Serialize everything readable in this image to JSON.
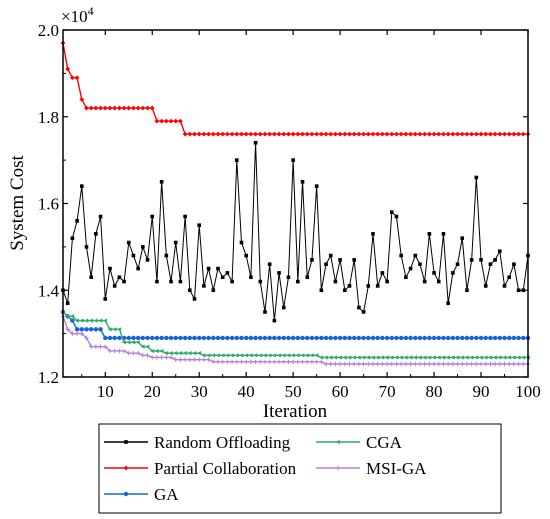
{
  "chart_data": {
    "type": "line",
    "xlabel": "Iteration",
    "ylabel": "System Cost",
    "y_multiplier_label": "×10",
    "y_multiplier_exp": "4",
    "xlim": [
      1,
      100
    ],
    "ylim": [
      1.2,
      2.0
    ],
    "xticks": [
      10,
      20,
      30,
      40,
      50,
      60,
      70,
      80,
      90,
      100
    ],
    "xtick_labels": [
      "10",
      "20",
      "30",
      "40",
      "50",
      "60",
      "70",
      "80",
      "90",
      "100"
    ],
    "yticks": [
      1.2,
      1.4,
      1.6,
      1.8,
      2.0
    ],
    "ytick_labels": [
      "1.2",
      "1.4",
      "1.6",
      "1.8",
      "2.0"
    ],
    "legend_position": "below",
    "series": [
      {
        "name": "Random Offloading",
        "color": "#000000",
        "marker": "square",
        "x": [
          1,
          2,
          3,
          4,
          5,
          6,
          7,
          8,
          9,
          10,
          11,
          12,
          13,
          14,
          15,
          16,
          17,
          18,
          19,
          20,
          21,
          22,
          23,
          24,
          25,
          26,
          27,
          28,
          29,
          30,
          31,
          32,
          33,
          34,
          35,
          36,
          37,
          38,
          39,
          40,
          41,
          42,
          43,
          44,
          45,
          46,
          47,
          48,
          49,
          50,
          51,
          52,
          53,
          54,
          55,
          56,
          57,
          58,
          59,
          60,
          61,
          62,
          63,
          64,
          65,
          66,
          67,
          68,
          69,
          70,
          71,
          72,
          73,
          74,
          75,
          76,
          77,
          78,
          79,
          80,
          81,
          82,
          83,
          84,
          85,
          86,
          87,
          88,
          89,
          90,
          91,
          92,
          93,
          94,
          95,
          96,
          97,
          98,
          99,
          100
        ],
        "values": [
          1.4,
          1.37,
          1.52,
          1.56,
          1.64,
          1.5,
          1.43,
          1.53,
          1.57,
          1.38,
          1.45,
          1.41,
          1.43,
          1.42,
          1.51,
          1.48,
          1.45,
          1.5,
          1.47,
          1.57,
          1.42,
          1.65,
          1.48,
          1.42,
          1.51,
          1.42,
          1.57,
          1.4,
          1.38,
          1.55,
          1.41,
          1.45,
          1.4,
          1.45,
          1.43,
          1.44,
          1.42,
          1.7,
          1.51,
          1.48,
          1.43,
          1.74,
          1.42,
          1.35,
          1.46,
          1.33,
          1.44,
          1.36,
          1.43,
          1.7,
          1.42,
          1.65,
          1.43,
          1.47,
          1.64,
          1.4,
          1.46,
          1.48,
          1.42,
          1.47,
          1.4,
          1.41,
          1.47,
          1.36,
          1.35,
          1.41,
          1.53,
          1.41,
          1.44,
          1.42,
          1.58,
          1.57,
          1.48,
          1.43,
          1.45,
          1.48,
          1.46,
          1.42,
          1.53,
          1.44,
          1.42,
          1.53,
          1.37,
          1.44,
          1.46,
          1.52,
          1.4,
          1.47,
          1.66,
          1.47,
          1.41,
          1.46,
          1.47,
          1.49,
          1.41,
          1.43,
          1.46,
          1.4,
          1.4,
          1.48
        ]
      },
      {
        "name": "Partial Collaboration",
        "color": "#ff0000",
        "marker": "diamond",
        "x": [
          1,
          2,
          3,
          4,
          5,
          6,
          7,
          8,
          9,
          10,
          11,
          12,
          13,
          14,
          15,
          16,
          17,
          18,
          19,
          20,
          21,
          22,
          23,
          24,
          25,
          26,
          27,
          28,
          29,
          30,
          31,
          32,
          33,
          34,
          35,
          36,
          37,
          38,
          39,
          40,
          41,
          42,
          43,
          44,
          45,
          46,
          47,
          48,
          49,
          50,
          51,
          52,
          53,
          54,
          55,
          56,
          57,
          58,
          59,
          60,
          61,
          62,
          63,
          64,
          65,
          66,
          67,
          68,
          69,
          70,
          71,
          72,
          73,
          74,
          75,
          76,
          77,
          78,
          79,
          80,
          81,
          82,
          83,
          84,
          85,
          86,
          87,
          88,
          89,
          90,
          91,
          92,
          93,
          94,
          95,
          96,
          97,
          98,
          99,
          100
        ],
        "values": [
          1.97,
          1.91,
          1.89,
          1.89,
          1.84,
          1.82,
          1.82,
          1.82,
          1.82,
          1.82,
          1.82,
          1.82,
          1.82,
          1.82,
          1.82,
          1.82,
          1.82,
          1.82,
          1.82,
          1.82,
          1.79,
          1.79,
          1.79,
          1.79,
          1.79,
          1.79,
          1.76,
          1.76,
          1.76,
          1.76,
          1.76,
          1.76,
          1.76,
          1.76,
          1.76,
          1.76,
          1.76,
          1.76,
          1.76,
          1.76,
          1.76,
          1.76,
          1.76,
          1.76,
          1.76,
          1.76,
          1.76,
          1.76,
          1.76,
          1.76,
          1.76,
          1.76,
          1.76,
          1.76,
          1.76,
          1.76,
          1.76,
          1.76,
          1.76,
          1.76,
          1.76,
          1.76,
          1.76,
          1.76,
          1.76,
          1.76,
          1.76,
          1.76,
          1.76,
          1.76,
          1.76,
          1.76,
          1.76,
          1.76,
          1.76,
          1.76,
          1.76,
          1.76,
          1.76,
          1.76,
          1.76,
          1.76,
          1.76,
          1.76,
          1.76,
          1.76,
          1.76,
          1.76,
          1.76,
          1.76,
          1.76,
          1.76,
          1.76,
          1.76,
          1.76,
          1.76,
          1.76,
          1.76,
          1.76,
          1.76
        ]
      },
      {
        "name": "GA",
        "color": "#1565d8",
        "marker": "circle",
        "x": [
          1,
          2,
          3,
          4,
          5,
          6,
          7,
          8,
          9,
          10,
          11,
          12,
          13,
          14,
          15,
          16,
          17,
          18,
          19,
          20,
          21,
          22,
          23,
          24,
          25,
          26,
          27,
          28,
          29,
          30,
          31,
          32,
          33,
          34,
          35,
          36,
          37,
          38,
          39,
          40,
          41,
          42,
          43,
          44,
          45,
          46,
          47,
          48,
          49,
          50,
          51,
          52,
          53,
          54,
          55,
          56,
          57,
          58,
          59,
          60,
          61,
          62,
          63,
          64,
          65,
          66,
          67,
          68,
          69,
          70,
          71,
          72,
          73,
          74,
          75,
          76,
          77,
          78,
          79,
          80,
          81,
          82,
          83,
          84,
          85,
          86,
          87,
          88,
          89,
          90,
          91,
          92,
          93,
          94,
          95,
          96,
          97,
          98,
          99,
          100
        ],
        "values": [
          1.35,
          1.34,
          1.33,
          1.31,
          1.31,
          1.31,
          1.31,
          1.31,
          1.31,
          1.29,
          1.29,
          1.29,
          1.29,
          1.29,
          1.29,
          1.29,
          1.29,
          1.29,
          1.29,
          1.29,
          1.29,
          1.29,
          1.29,
          1.29,
          1.29,
          1.29,
          1.29,
          1.29,
          1.29,
          1.29,
          1.29,
          1.29,
          1.29,
          1.29,
          1.29,
          1.29,
          1.29,
          1.29,
          1.29,
          1.29,
          1.29,
          1.29,
          1.29,
          1.29,
          1.29,
          1.29,
          1.29,
          1.29,
          1.29,
          1.29,
          1.29,
          1.29,
          1.29,
          1.29,
          1.29,
          1.29,
          1.29,
          1.29,
          1.29,
          1.29,
          1.29,
          1.29,
          1.29,
          1.29,
          1.29,
          1.29,
          1.29,
          1.29,
          1.29,
          1.29,
          1.29,
          1.29,
          1.29,
          1.29,
          1.29,
          1.29,
          1.29,
          1.29,
          1.29,
          1.29,
          1.29,
          1.29,
          1.29,
          1.29,
          1.29,
          1.29,
          1.29,
          1.29,
          1.29,
          1.29,
          1.29,
          1.29,
          1.29,
          1.29,
          1.29,
          1.29,
          1.29,
          1.29,
          1.29,
          1.29
        ]
      },
      {
        "name": "CGA",
        "color": "#2eaa6b",
        "marker": "triangle",
        "x": [
          1,
          2,
          3,
          4,
          5,
          6,
          7,
          8,
          9,
          10,
          11,
          12,
          13,
          14,
          15,
          16,
          17,
          18,
          19,
          20,
          21,
          22,
          23,
          24,
          25,
          26,
          27,
          28,
          29,
          30,
          31,
          32,
          33,
          34,
          35,
          36,
          37,
          38,
          39,
          40,
          41,
          42,
          43,
          44,
          45,
          46,
          47,
          48,
          49,
          50,
          51,
          52,
          53,
          54,
          55,
          56,
          57,
          58,
          59,
          60,
          61,
          62,
          63,
          64,
          65,
          66,
          67,
          68,
          69,
          70,
          71,
          72,
          73,
          74,
          75,
          76,
          77,
          78,
          79,
          80,
          81,
          82,
          83,
          84,
          85,
          86,
          87,
          88,
          89,
          90,
          91,
          92,
          93,
          94,
          95,
          96,
          97,
          98,
          99,
          100
        ],
        "values": [
          1.35,
          1.34,
          1.34,
          1.33,
          1.33,
          1.33,
          1.33,
          1.33,
          1.33,
          1.33,
          1.31,
          1.31,
          1.31,
          1.28,
          1.28,
          1.28,
          1.28,
          1.27,
          1.27,
          1.26,
          1.26,
          1.26,
          1.255,
          1.255,
          1.255,
          1.255,
          1.255,
          1.255,
          1.255,
          1.255,
          1.25,
          1.25,
          1.25,
          1.25,
          1.25,
          1.25,
          1.25,
          1.25,
          1.25,
          1.25,
          1.25,
          1.25,
          1.25,
          1.25,
          1.25,
          1.25,
          1.25,
          1.25,
          1.25,
          1.25,
          1.25,
          1.25,
          1.25,
          1.25,
          1.25,
          1.245,
          1.245,
          1.245,
          1.245,
          1.245,
          1.245,
          1.245,
          1.245,
          1.245,
          1.245,
          1.245,
          1.245,
          1.245,
          1.245,
          1.245,
          1.245,
          1.245,
          1.245,
          1.245,
          1.245,
          1.245,
          1.245,
          1.245,
          1.245,
          1.245,
          1.245,
          1.245,
          1.245,
          1.245,
          1.245,
          1.245,
          1.245,
          1.245,
          1.245,
          1.245,
          1.245,
          1.245,
          1.245,
          1.245,
          1.245,
          1.245,
          1.245,
          1.245,
          1.245,
          1.245
        ]
      },
      {
        "name": "MSI-GA",
        "color": "#b57edc",
        "marker": "plus",
        "x": [
          1,
          2,
          3,
          4,
          5,
          6,
          7,
          8,
          9,
          10,
          11,
          12,
          13,
          14,
          15,
          16,
          17,
          18,
          19,
          20,
          21,
          22,
          23,
          24,
          25,
          26,
          27,
          28,
          29,
          30,
          31,
          32,
          33,
          34,
          35,
          36,
          37,
          38,
          39,
          40,
          41,
          42,
          43,
          44,
          45,
          46,
          47,
          48,
          49,
          50,
          51,
          52,
          53,
          54,
          55,
          56,
          57,
          58,
          59,
          60,
          61,
          62,
          63,
          64,
          65,
          66,
          67,
          68,
          69,
          70,
          71,
          72,
          73,
          74,
          75,
          76,
          77,
          78,
          79,
          80,
          81,
          82,
          83,
          84,
          85,
          86,
          87,
          88,
          89,
          90,
          91,
          92,
          93,
          94,
          95,
          96,
          97,
          98,
          99,
          100
        ],
        "values": [
          1.34,
          1.31,
          1.3,
          1.3,
          1.3,
          1.29,
          1.27,
          1.27,
          1.27,
          1.27,
          1.26,
          1.26,
          1.26,
          1.26,
          1.255,
          1.255,
          1.255,
          1.25,
          1.25,
          1.245,
          1.245,
          1.245,
          1.245,
          1.245,
          1.24,
          1.24,
          1.24,
          1.24,
          1.24,
          1.24,
          1.24,
          1.24,
          1.235,
          1.235,
          1.235,
          1.235,
          1.235,
          1.235,
          1.235,
          1.235,
          1.235,
          1.235,
          1.235,
          1.235,
          1.235,
          1.235,
          1.235,
          1.235,
          1.235,
          1.235,
          1.235,
          1.235,
          1.235,
          1.235,
          1.235,
          1.235,
          1.23,
          1.23,
          1.23,
          1.23,
          1.23,
          1.23,
          1.23,
          1.23,
          1.23,
          1.23,
          1.23,
          1.23,
          1.23,
          1.23,
          1.23,
          1.23,
          1.23,
          1.23,
          1.23,
          1.23,
          1.23,
          1.23,
          1.23,
          1.23,
          1.23,
          1.23,
          1.23,
          1.23,
          1.23,
          1.23,
          1.23,
          1.23,
          1.23,
          1.23,
          1.23,
          1.23,
          1.23,
          1.23,
          1.23,
          1.23,
          1.23,
          1.23,
          1.23,
          1.23
        ]
      }
    ]
  }
}
